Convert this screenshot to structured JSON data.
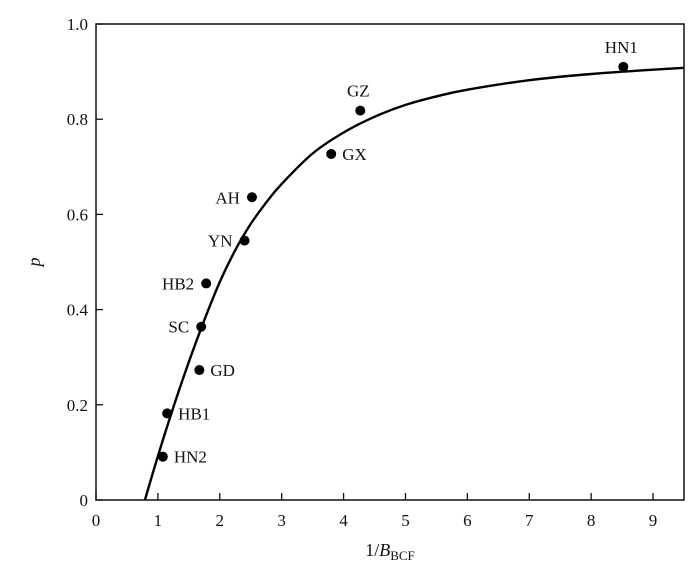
{
  "chart_data": {
    "type": "scatter",
    "title": "",
    "xlabel": {
      "main": "1/",
      "var": "B",
      "sub": "BCF"
    },
    "ylabel": "p",
    "xlim": [
      0,
      9.5
    ],
    "ylim": [
      0,
      1.0
    ],
    "xticks": [
      "0",
      "1",
      "2",
      "3",
      "4",
      "5",
      "6",
      "7",
      "8",
      "9"
    ],
    "yticks": [
      "0",
      "0.2",
      "0.4",
      "0.6",
      "0.8",
      "1.0"
    ],
    "grid": false,
    "points": [
      {
        "label": "HN1",
        "x": 8.52,
        "y": 0.91,
        "label_pos": "above"
      },
      {
        "label": "GZ",
        "x": 4.27,
        "y": 0.818,
        "label_pos": "above"
      },
      {
        "label": "GX",
        "x": 3.8,
        "y": 0.727,
        "label_pos": "right"
      },
      {
        "label": "AH",
        "x": 2.52,
        "y": 0.636,
        "label_pos": "left"
      },
      {
        "label": "YN",
        "x": 2.4,
        "y": 0.545,
        "label_pos": "left"
      },
      {
        "label": "HB2",
        "x": 1.78,
        "y": 0.455,
        "label_pos": "left"
      },
      {
        "label": "SC",
        "x": 1.7,
        "y": 0.364,
        "label_pos": "left"
      },
      {
        "label": "GD",
        "x": 1.67,
        "y": 0.273,
        "label_pos": "right"
      },
      {
        "label": "HB1",
        "x": 1.15,
        "y": 0.182,
        "label_pos": "right"
      },
      {
        "label": "HN2",
        "x": 1.08,
        "y": 0.091,
        "label_pos": "right"
      }
    ],
    "fit_curve": {
      "type": "line",
      "x": [
        0.79,
        1.0,
        1.25,
        1.5,
        1.75,
        2.0,
        2.25,
        2.5,
        2.75,
        3.0,
        3.5,
        4.0,
        4.5,
        5.0,
        5.5,
        6.0,
        7.0,
        8.0,
        9.0,
        9.5
      ],
      "y": [
        0.0,
        0.092,
        0.195,
        0.29,
        0.378,
        0.458,
        0.525,
        0.58,
        0.625,
        0.664,
        0.728,
        0.772,
        0.805,
        0.83,
        0.848,
        0.862,
        0.882,
        0.895,
        0.904,
        0.908
      ]
    }
  }
}
